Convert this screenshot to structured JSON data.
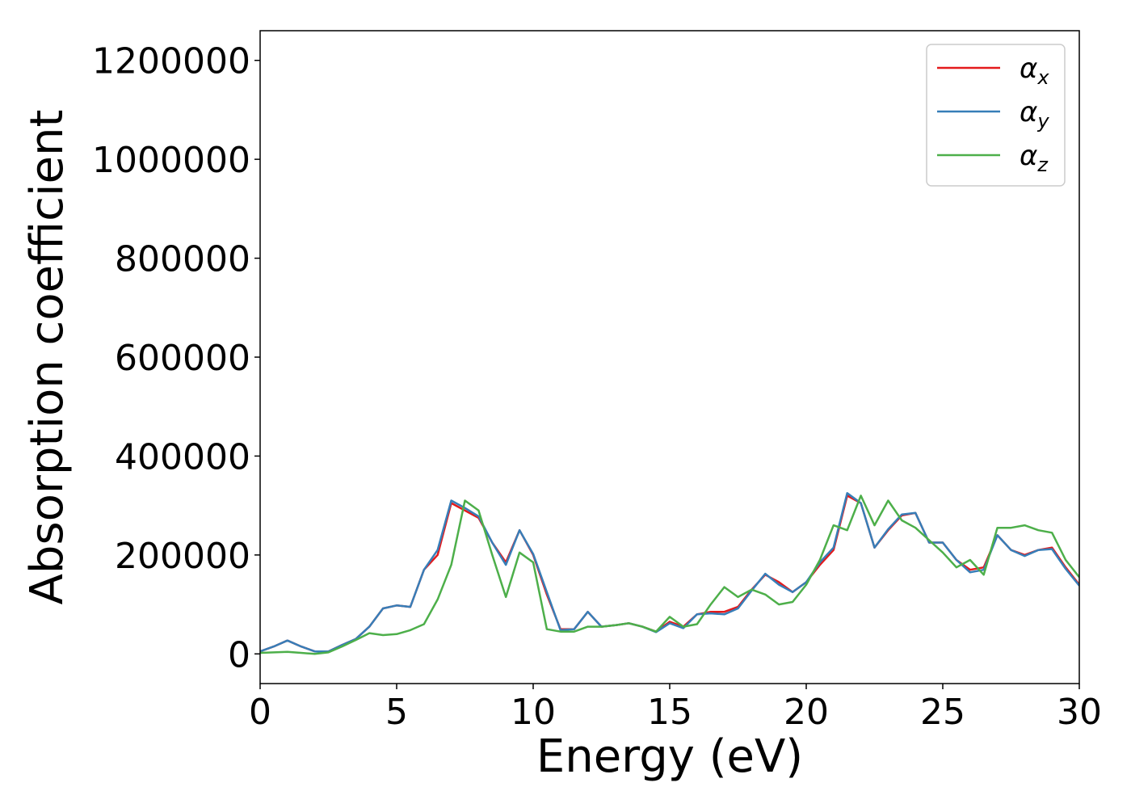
{
  "chart_data": {
    "type": "line",
    "title": "",
    "xlabel": "Energy (eV)",
    "ylabel": "Absorption coefficient",
    "xlim": [
      0,
      30
    ],
    "ylim": [
      -60000,
      1260000
    ],
    "xticks": [
      0,
      5,
      10,
      15,
      20,
      25,
      30
    ],
    "yticks": [
      0,
      200000,
      400000,
      600000,
      800000,
      1000000,
      1200000
    ],
    "grid": false,
    "legend": {
      "placement": "top-right"
    },
    "x": [
      0,
      0.5,
      1,
      1.5,
      2,
      2.5,
      3,
      3.5,
      4,
      4.5,
      5,
      5.5,
      6,
      6.5,
      7,
      7.5,
      8,
      8.5,
      9,
      9.5,
      10,
      10.5,
      11,
      11.5,
      12,
      12.5,
      13,
      13.5,
      14,
      14.5,
      15,
      15.5,
      16,
      16.5,
      17,
      17.5,
      18,
      18.5,
      19,
      19.5,
      20,
      20.5,
      21,
      21.5,
      22,
      22.5,
      23,
      23.5,
      24,
      24.5,
      25,
      25.5,
      26,
      26.5,
      27,
      27.5,
      28,
      28.5,
      29,
      29.5,
      30
    ],
    "series": [
      {
        "name": "αx",
        "symbol": "α",
        "subscript": "x",
        "color": "#e41a1c",
        "values": [
          5000,
          15000,
          27000,
          15000,
          5000,
          5000,
          18000,
          30000,
          55000,
          92000,
          98000,
          95000,
          170000,
          200000,
          305000,
          290000,
          275000,
          225000,
          185000,
          250000,
          200000,
          120000,
          50000,
          50000,
          85000,
          55000,
          58000,
          62000,
          55000,
          45000,
          65000,
          55000,
          80000,
          85000,
          85000,
          95000,
          130000,
          160000,
          145000,
          125000,
          145000,
          180000,
          210000,
          320000,
          305000,
          215000,
          250000,
          280000,
          285000,
          225000,
          225000,
          190000,
          170000,
          175000,
          240000,
          210000,
          200000,
          210000,
          215000,
          175000,
          140000
        ]
      },
      {
        "name": "αy",
        "symbol": "α",
        "subscript": "y",
        "color": "#377eb8",
        "values": [
          5000,
          15000,
          27000,
          15000,
          5000,
          5000,
          18000,
          30000,
          55000,
          92000,
          98000,
          95000,
          170000,
          210000,
          310000,
          295000,
          278000,
          225000,
          180000,
          250000,
          202000,
          125000,
          48000,
          50000,
          85000,
          55000,
          58000,
          62000,
          55000,
          44000,
          62000,
          52000,
          80000,
          82000,
          80000,
          92000,
          128000,
          162000,
          140000,
          125000,
          145000,
          185000,
          215000,
          325000,
          305000,
          215000,
          252000,
          282000,
          285000,
          225000,
          225000,
          190000,
          165000,
          170000,
          240000,
          210000,
          198000,
          210000,
          212000,
          172000,
          138000
        ]
      },
      {
        "name": "αz",
        "symbol": "α",
        "subscript": "z",
        "color": "#4daf4a",
        "values": [
          2000,
          3000,
          4000,
          2000,
          0,
          3000,
          15000,
          28000,
          42000,
          38000,
          40000,
          48000,
          60000,
          110000,
          180000,
          310000,
          290000,
          200000,
          115000,
          205000,
          185000,
          50000,
          45000,
          45000,
          55000,
          55000,
          58000,
          62000,
          55000,
          45000,
          75000,
          55000,
          60000,
          100000,
          135000,
          115000,
          130000,
          120000,
          100000,
          105000,
          140000,
          190000,
          260000,
          250000,
          320000,
          260000,
          310000,
          270000,
          255000,
          230000,
          205000,
          175000,
          190000,
          160000,
          255000,
          255000,
          260000,
          250000,
          245000,
          190000,
          155000
        ]
      }
    ]
  }
}
